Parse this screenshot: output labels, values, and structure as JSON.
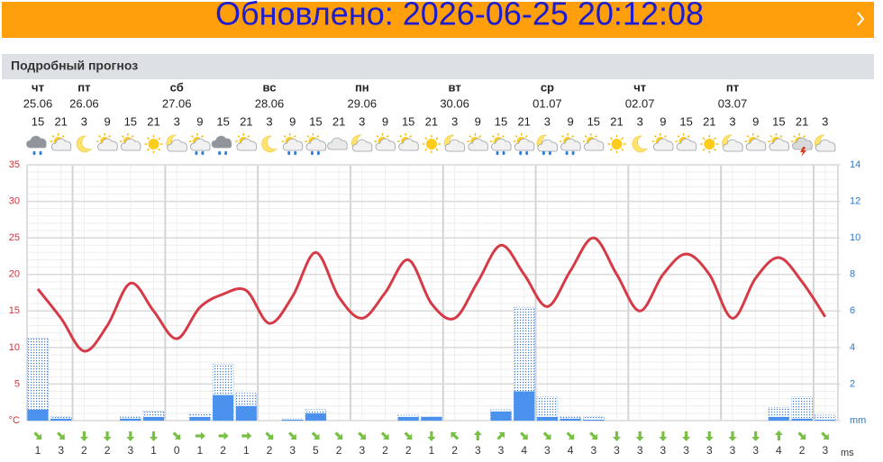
{
  "header": {
    "updated": "Обновлено: 2026-06-25 20:12:08"
  },
  "section_title": "Подробный прогноз",
  "chart_data": {
    "type": "line",
    "categories": [
      15,
      21,
      3,
      9,
      15,
      21,
      3,
      9,
      15,
      21,
      3,
      9,
      15,
      21,
      3,
      9,
      15,
      21,
      3,
      9,
      15,
      21,
      3,
      9,
      15,
      21,
      3,
      9,
      15,
      21,
      3,
      9,
      15,
      21,
      3
    ],
    "days": [
      "чт",
      null,
      "пт",
      null,
      null,
      null,
      "сб",
      null,
      null,
      null,
      "вс",
      null,
      null,
      null,
      "пн",
      null,
      null,
      null,
      "вт",
      null,
      null,
      null,
      "ср",
      null,
      null,
      null,
      "чт",
      null,
      null,
      null,
      "пт",
      null,
      null,
      null,
      null
    ],
    "dates": [
      "25.06",
      null,
      "26.06",
      null,
      null,
      null,
      "27.06",
      null,
      null,
      null,
      "28.06",
      null,
      null,
      null,
      "29.06",
      null,
      null,
      null,
      "30.06",
      null,
      null,
      null,
      "01.07",
      null,
      null,
      null,
      "02.07",
      null,
      null,
      null,
      "03.07",
      null,
      null,
      null,
      null
    ],
    "series": [
      {
        "type": "line",
        "color": "#d63a46",
        "values": [
          18,
          14,
          9.5,
          13,
          18.8,
          15,
          11.2,
          15.5,
          17.3,
          17.8,
          13.3,
          17,
          23,
          16.9,
          14,
          17.5,
          22,
          16,
          14,
          19,
          24,
          20,
          15.6,
          20.5,
          25,
          20,
          15,
          20,
          22.8,
          20,
          14,
          19.5,
          22.3,
          19,
          14.2
        ]
      },
      {
        "type": "bar",
        "axis": "y2",
        "pattern": "dotted",
        "color": "#3a78d6",
        "values": [
          4.5,
          0.2,
          0,
          0,
          0.2,
          0.5,
          0,
          0.4,
          3.1,
          1.5,
          0,
          0.1,
          0.6,
          0,
          0,
          0,
          0.3,
          0.2,
          0,
          0,
          0.6,
          6.2,
          1.3,
          0.2,
          0.2,
          0,
          0,
          0,
          0,
          0,
          0,
          0,
          0.7,
          1.3,
          0.3
        ]
      },
      {
        "type": "bar",
        "axis": "y2",
        "color": "#4b92ee",
        "values": [
          0.6,
          0.1,
          0,
          0,
          0.1,
          0.2,
          0,
          0.2,
          1.4,
          0.8,
          0,
          0.05,
          0.4,
          0,
          0,
          0,
          0.2,
          0.2,
          0,
          0,
          0.5,
          1.6,
          0.2,
          0.1,
          0.05,
          0,
          0,
          0,
          0,
          0,
          0,
          0,
          0.2,
          0.1,
          0.05
        ]
      }
    ],
    "ylim": [
      0,
      35
    ],
    "yticks": [
      {
        "value": 0,
        "label": "°C"
      },
      5,
      10,
      15,
      20,
      25,
      30,
      35
    ],
    "y2lim": [
      0,
      14
    ],
    "y2ticks": [
      {
        "value": 0,
        "label": "mm"
      },
      2,
      4,
      6,
      8,
      10,
      12,
      14
    ],
    "grid": true,
    "wind": {
      "unit": "ms",
      "color": "#77c044",
      "speeds": [
        1,
        3,
        2,
        2,
        3,
        1,
        0,
        1,
        2,
        1,
        2,
        3,
        5,
        2,
        3,
        2,
        2,
        1,
        2,
        3,
        3,
        4,
        3,
        4,
        3,
        3,
        3,
        3,
        3,
        3,
        3,
        3,
        4,
        2,
        3
      ],
      "directions": [
        45,
        45,
        90,
        90,
        90,
        90,
        45,
        0,
        0,
        0,
        45,
        45,
        45,
        45,
        45,
        45,
        45,
        90,
        -135,
        -90,
        -45,
        45,
        45,
        45,
        45,
        90,
        90,
        90,
        90,
        90,
        90,
        90,
        -90,
        45,
        45
      ]
    }
  }
}
